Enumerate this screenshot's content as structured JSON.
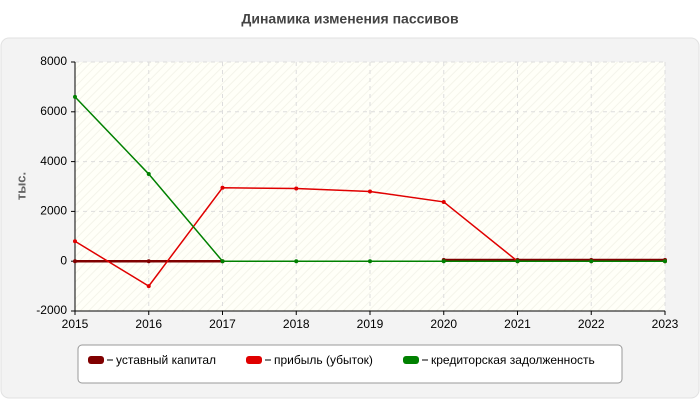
{
  "chart_data": {
    "type": "line",
    "title": "Динамика изменения пассивов",
    "y_label": "тыс.",
    "x": [
      2015,
      2016,
      2017,
      2018,
      2019,
      2020,
      2021,
      2022,
      2023
    ],
    "xlim": [
      2015,
      2023
    ],
    "xticks": [
      2015,
      2016,
      2017,
      2018,
      2019,
      2020,
      2021,
      2022,
      2023
    ],
    "ylim": [
      -2000,
      8000
    ],
    "yticks": [
      -2000,
      0,
      2000,
      4000,
      6000,
      8000
    ],
    "grid": true,
    "series": [
      {
        "name": "уставный капитал",
        "color": "#800000",
        "values": [
          0,
          0,
          0,
          null,
          null,
          50,
          50,
          50,
          50
        ]
      },
      {
        "name": "прибыль (убыток)",
        "color": "#e00000",
        "values": [
          800,
          -1000,
          2950,
          2920,
          2800,
          2380,
          0,
          0,
          0
        ]
      },
      {
        "name": "кредиторская задолженность",
        "color": "#008000",
        "values": [
          6600,
          3500,
          0,
          0,
          0,
          0,
          0,
          0,
          0
        ]
      }
    ]
  }
}
